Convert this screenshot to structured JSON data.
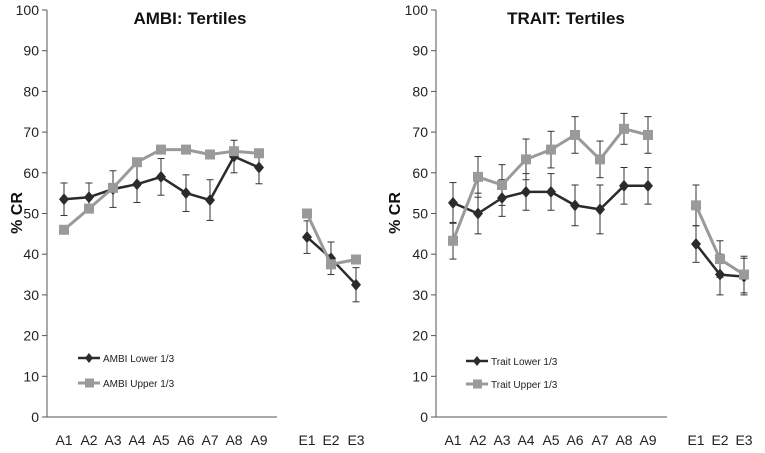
{
  "chart_data": [
    {
      "type": "line",
      "title": "AMBI: Tertiles",
      "ylabel": "% CR",
      "xlabel": "",
      "ylim": [
        0,
        100
      ],
      "yticks": [
        0,
        10,
        20,
        30,
        40,
        50,
        60,
        70,
        80,
        90,
        100
      ],
      "categories": [
        "A1",
        "A2",
        "A3",
        "A4",
        "A5",
        "A6",
        "A7",
        "A8",
        "A9",
        "E1",
        "E2",
        "E3"
      ],
      "segments": [
        [
          0,
          8
        ],
        [
          9,
          11
        ]
      ],
      "legend_position": "lower-left",
      "series": [
        {
          "name": "AMBI Lower 1/3",
          "marker": "diamond",
          "color": "#2b2b2b",
          "values": [
            53.5,
            54,
            56,
            57.2,
            59,
            55,
            53.3,
            64,
            61.3,
            44.2,
            39,
            32.5
          ],
          "errors": [
            4,
            3.5,
            4.5,
            4.5,
            4.5,
            4.5,
            5,
            4,
            4,
            4,
            4,
            4.2
          ]
        },
        {
          "name": "AMBI Upper 1/3",
          "marker": "square",
          "color": "#9a9a9a",
          "values": [
            46,
            51.2,
            56.3,
            62.6,
            65.7,
            65.7,
            64.5,
            65.3,
            64.8,
            50,
            37.5,
            38.7
          ]
        }
      ]
    },
    {
      "type": "line",
      "title": "TRAIT: Tertiles",
      "ylabel": "% CR",
      "xlabel": "",
      "ylim": [
        0,
        100
      ],
      "yticks": [
        0,
        10,
        20,
        30,
        40,
        50,
        60,
        70,
        80,
        90,
        100
      ],
      "categories": [
        "A1",
        "A2",
        "A3",
        "A4",
        "A5",
        "A6",
        "A7",
        "A8",
        "A9",
        "E1",
        "E2",
        "E3"
      ],
      "segments": [
        [
          0,
          8
        ],
        [
          9,
          11
        ]
      ],
      "legend_position": "lower-left",
      "series": [
        {
          "name": "Trait Lower 1/3",
          "marker": "diamond",
          "color": "#2b2b2b",
          "values": [
            52.6,
            50,
            53.8,
            55.3,
            55.3,
            52,
            51,
            56.8,
            56.8,
            42.5,
            35,
            34.5
          ],
          "errors": [
            5,
            5,
            4.5,
            4.5,
            4.5,
            5,
            6,
            4.5,
            4.5,
            4.5,
            5,
            4.5
          ]
        },
        {
          "name": "Trait Upper 1/3",
          "marker": "square",
          "color": "#9a9a9a",
          "values": [
            43.3,
            59,
            57,
            63.3,
            65.7,
            69.3,
            63.3,
            70.8,
            69.3,
            52,
            38.8,
            35
          ],
          "errors": [
            4.5,
            5,
            5,
            5,
            4.5,
            4.5,
            4.5,
            3.8,
            4.5,
            5,
            4.5,
            4.5
          ]
        }
      ]
    }
  ]
}
